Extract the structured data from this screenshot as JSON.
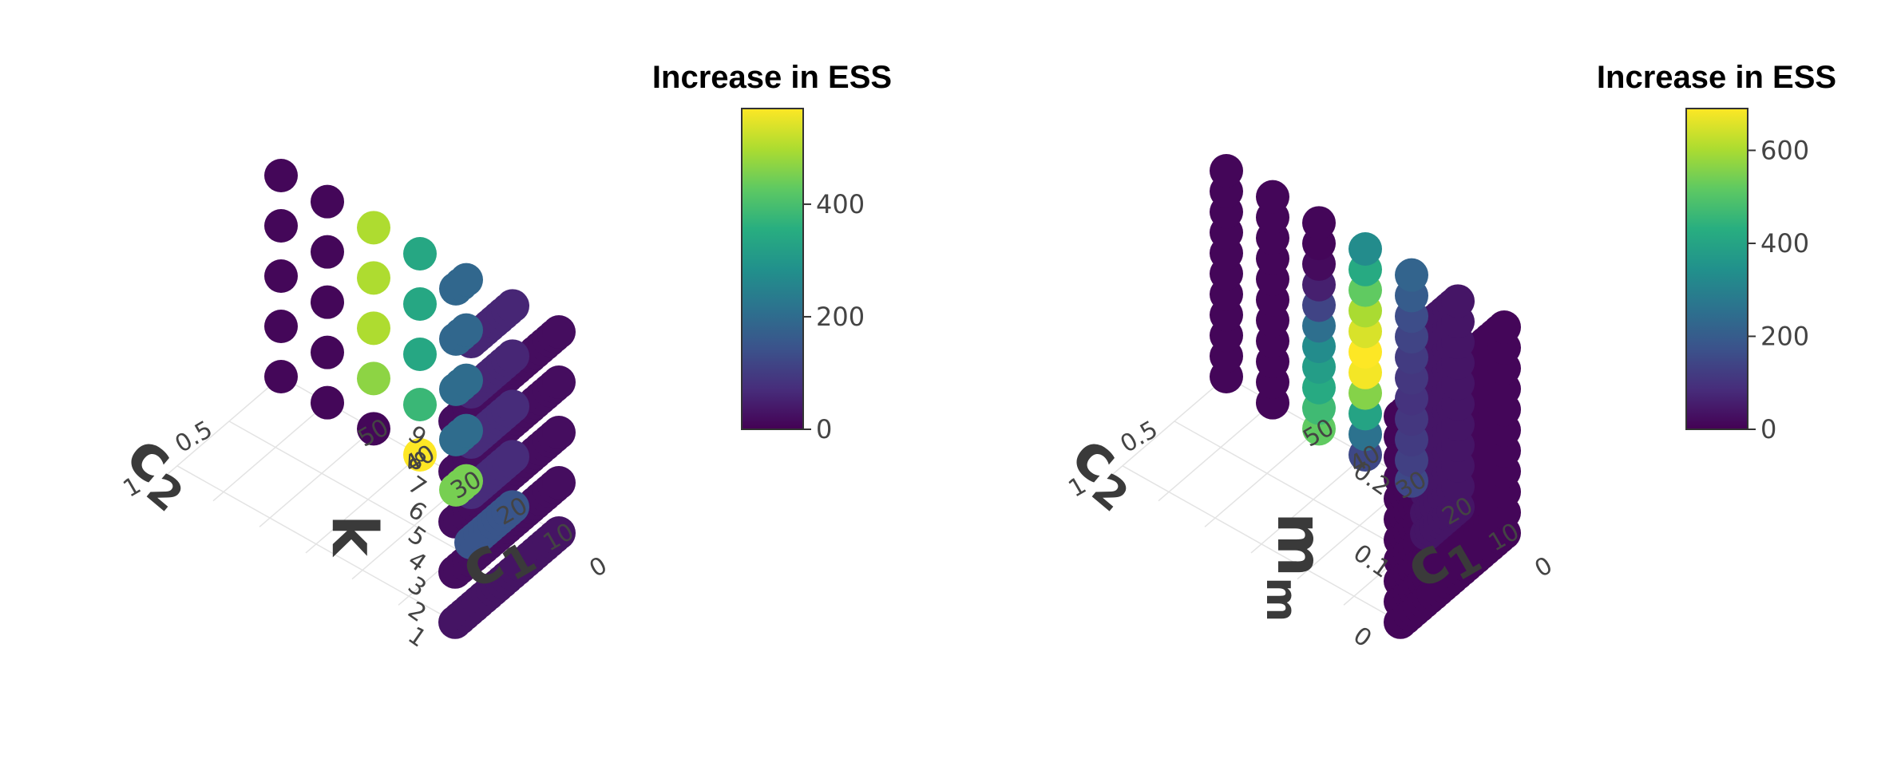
{
  "chart_data": [
    {
      "type": "scatter3d",
      "panel": "left",
      "colorbar": {
        "title": "Increase in ESS",
        "range": [
          0,
          570
        ],
        "ticks": [
          0,
          200,
          400
        ],
        "colorscale": "viridis"
      },
      "axes": {
        "x": {
          "label": "c",
          "subscript": "1",
          "ticks": [
            0,
            10,
            20,
            30,
            40,
            50
          ]
        },
        "y": {
          "label": "c",
          "subscript": "2",
          "ticks": [
            0.5,
            1
          ]
        },
        "z": {
          "label": "k",
          "ticks": [
            1,
            2,
            3,
            4,
            5,
            6,
            7,
            8,
            9
          ]
        }
      },
      "series": [
        {
          "k": 9,
          "c1": 0,
          "c2_range": [
            0,
            1
          ],
          "value": 20
        },
        {
          "k": 9,
          "c1": 10,
          "c2_range": [
            0,
            0.4
          ],
          "value": 60
        },
        {
          "k": 9,
          "c1": 20,
          "c2_range": [
            0,
            0.1
          ],
          "value": 190
        },
        {
          "k": 9,
          "c1": 30,
          "c2_range": [
            0,
            0
          ],
          "value": 340
        },
        {
          "k": 9,
          "c1": 40,
          "c2_range": [
            0,
            0
          ],
          "value": 500
        },
        {
          "k": 9,
          "c1": 50,
          "c2_range": [
            0,
            0
          ],
          "value": 10
        },
        {
          "k": 9,
          "c1": 60,
          "c2_range": [
            0,
            0
          ],
          "value": 10
        },
        {
          "k": 7,
          "c1": 0,
          "c2_range": [
            0,
            1
          ],
          "value": 20
        },
        {
          "k": 7,
          "c1": 10,
          "c2_range": [
            0,
            0.4
          ],
          "value": 60
        },
        {
          "k": 7,
          "c1": 20,
          "c2_range": [
            0,
            0.1
          ],
          "value": 190
        },
        {
          "k": 7,
          "c1": 30,
          "c2_range": [
            0,
            0
          ],
          "value": 340
        },
        {
          "k": 7,
          "c1": 40,
          "c2_range": [
            0,
            0
          ],
          "value": 500
        },
        {
          "k": 7,
          "c1": 50,
          "c2_range": [
            0,
            0
          ],
          "value": 10
        },
        {
          "k": 7,
          "c1": 60,
          "c2_range": [
            0,
            0
          ],
          "value": 10
        },
        {
          "k": 5,
          "c1": 0,
          "c2_range": [
            0,
            1
          ],
          "value": 20
        },
        {
          "k": 5,
          "c1": 10,
          "c2_range": [
            0,
            0.4
          ],
          "value": 70
        },
        {
          "k": 5,
          "c1": 20,
          "c2_range": [
            0,
            0.1
          ],
          "value": 200
        },
        {
          "k": 5,
          "c1": 30,
          "c2_range": [
            0,
            0
          ],
          "value": 340
        },
        {
          "k": 5,
          "c1": 40,
          "c2_range": [
            0,
            0
          ],
          "value": 500
        },
        {
          "k": 5,
          "c1": 50,
          "c2_range": [
            0,
            0
          ],
          "value": 10
        },
        {
          "k": 5,
          "c1": 60,
          "c2_range": [
            0,
            0
          ],
          "value": 10
        },
        {
          "k": 3,
          "c1": 0,
          "c2_range": [
            0,
            1
          ],
          "value": 20
        },
        {
          "k": 3,
          "c1": 10,
          "c2_range": [
            0,
            0.4
          ],
          "value": 70
        },
        {
          "k": 3,
          "c1": 20,
          "c2_range": [
            0,
            0.1
          ],
          "value": 200
        },
        {
          "k": 3,
          "c1": 30,
          "c2_range": [
            0,
            0
          ],
          "value": 380
        },
        {
          "k": 3,
          "c1": 40,
          "c2_range": [
            0,
            0
          ],
          "value": 470
        },
        {
          "k": 3,
          "c1": 50,
          "c2_range": [
            0,
            0
          ],
          "value": 10
        },
        {
          "k": 3,
          "c1": 60,
          "c2_range": [
            0,
            0
          ],
          "value": 10
        },
        {
          "k": 1,
          "c1": 0,
          "c2_range": [
            0,
            1
          ],
          "value": 30
        },
        {
          "k": 1,
          "c1": 10,
          "c2_range": [
            0,
            0.4
          ],
          "value": 150
        },
        {
          "k": 1,
          "c1": 20,
          "c2_range": [
            0,
            0.1
          ],
          "value": 450
        },
        {
          "k": 1,
          "c1": 30,
          "c2_range": [
            0,
            0
          ],
          "value": 570
        },
        {
          "k": 1,
          "c1": 40,
          "c2_range": [
            0,
            0
          ],
          "value": 10
        },
        {
          "k": 1,
          "c1": 50,
          "c2_range": [
            0,
            0
          ],
          "value": 10
        },
        {
          "k": 1,
          "c1": 60,
          "c2_range": [
            0,
            0
          ],
          "value": 10
        }
      ]
    },
    {
      "type": "scatter3d",
      "panel": "right",
      "colorbar": {
        "title": "Increase in ESS",
        "range": [
          0,
          690
        ],
        "ticks": [
          0,
          200,
          400,
          600
        ],
        "colorscale": "viridis"
      },
      "axes": {
        "x": {
          "label": "c",
          "subscript": "1",
          "ticks": [
            0,
            10,
            20,
            30,
            40,
            50
          ]
        },
        "y": {
          "label": "c",
          "subscript": "2",
          "ticks": [
            0.5,
            1
          ]
        },
        "z": {
          "label": "m",
          "subscript": "m",
          "ticks": [
            0,
            0.1,
            0.2
          ]
        }
      },
      "series": [
        {
          "c1": 0,
          "c2_range": [
            0,
            1
          ],
          "m_range": [
            0,
            0.25
          ],
          "values": [
            10
          ]
        },
        {
          "c1": 10,
          "c2_range": [
            0,
            0.3
          ],
          "m_range": [
            0,
            0.25
          ],
          "values": [
            40
          ]
        },
        {
          "c1": 20,
          "c2_range": [
            0,
            0
          ],
          "m_range": [
            0,
            0.25
          ],
          "values": [
            220,
            200,
            160,
            140,
            120,
            110,
            100,
            110,
            120,
            130,
            150
          ]
        },
        {
          "c1": 30,
          "c2_range": [
            0,
            0
          ],
          "m_range": [
            0,
            0.25
          ],
          "values": [
            330,
            420,
            520,
            600,
            650,
            690,
            680,
            560,
            400,
            260,
            150
          ]
        },
        {
          "c1": 40,
          "c2_range": [
            0,
            0
          ],
          "m_range": [
            0,
            0.25
          ],
          "values": [
            10,
            10,
            20,
            60,
            140,
            250,
            330,
            380,
            420,
            470,
            520
          ]
        },
        {
          "c1": 50,
          "c2_range": [
            0,
            0
          ],
          "m_range": [
            0,
            0.25
          ],
          "values": [
            10
          ]
        },
        {
          "c1": 60,
          "c2_range": [
            0,
            0
          ],
          "m_range": [
            0,
            0.25
          ],
          "values": [
            10
          ]
        }
      ]
    }
  ]
}
